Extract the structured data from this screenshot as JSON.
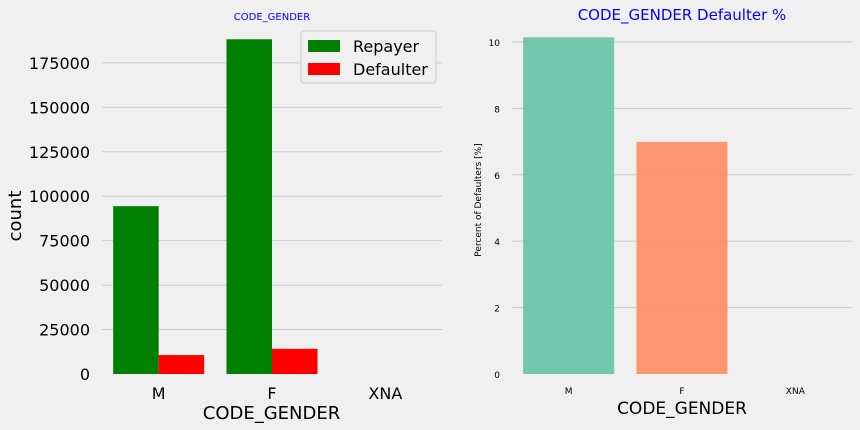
{
  "chart_data": [
    {
      "type": "bar",
      "title": "CODE_GENDER",
      "xlabel": "CODE_GENDER",
      "ylabel": "count",
      "categories": [
        "M",
        "F",
        "XNA"
      ],
      "series": [
        {
          "name": "Repayer",
          "values": [
            94400,
            188300,
            4
          ],
          "color": "#008000"
        },
        {
          "name": "Defaulter",
          "values": [
            10655,
            14170,
            0
          ],
          "color": "#ff0000"
        }
      ],
      "ylim": [
        0,
        198000
      ],
      "yticks": [
        0,
        25000,
        50000,
        75000,
        100000,
        125000,
        150000,
        175000
      ],
      "grid": "horizontal",
      "legend_position": "top-right"
    },
    {
      "type": "bar",
      "title": "CODE_GENDER Defaulter %",
      "xlabel": "CODE_GENDER",
      "ylabel": "Percent of Defaulters [%]",
      "categories": [
        "M",
        "F",
        "XNA"
      ],
      "values": [
        10.14,
        6.99,
        0
      ],
      "colors": [
        "#66c2a5",
        "#fc8d62",
        "#8da0cb"
      ],
      "ylim": [
        0,
        10.6
      ],
      "yticks": [
        0,
        2,
        4,
        6,
        8,
        10
      ],
      "grid": "horizontal"
    }
  ]
}
